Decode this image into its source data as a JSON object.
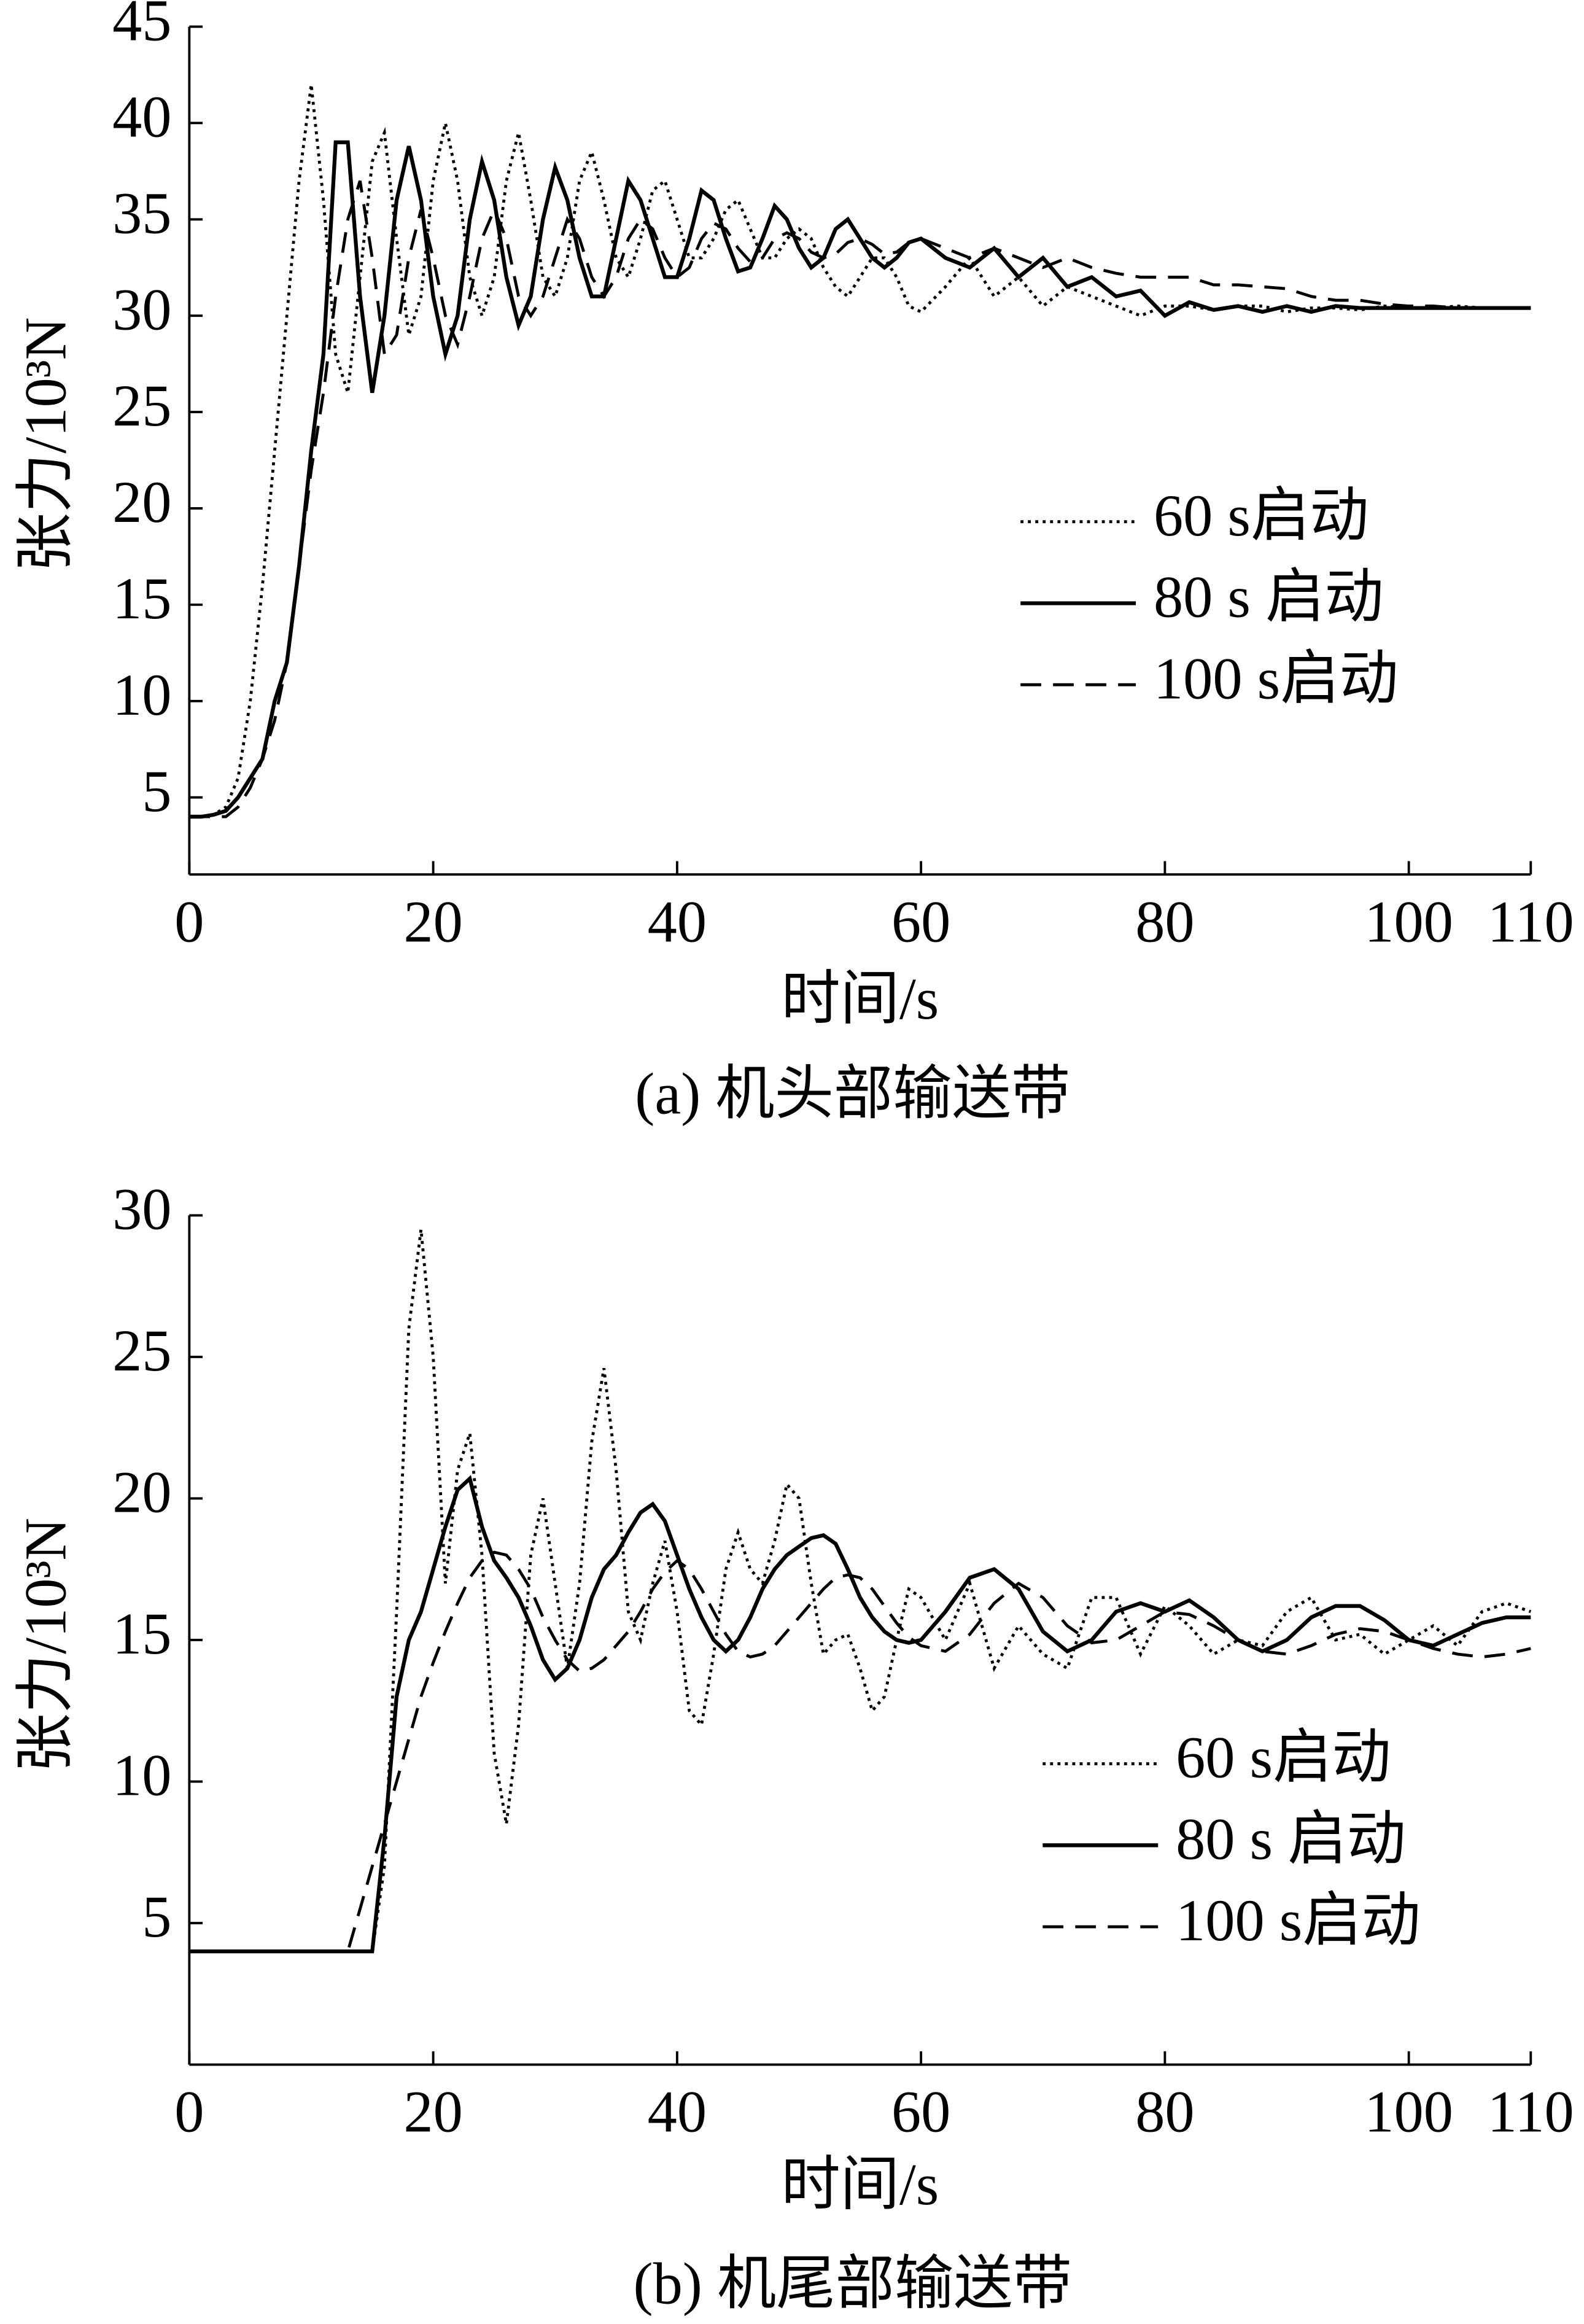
{
  "chart_data": [
    {
      "type": "line",
      "caption": "(a)  机头部输送带",
      "xlabel": "时间/s",
      "ylabel": "张力/10³N",
      "xlim": [
        0,
        110
      ],
      "xticks": [
        0,
        20,
        40,
        60,
        80,
        100,
        110
      ],
      "ylim": [
        1,
        45
      ],
      "yticks": [
        5,
        10,
        15,
        20,
        25,
        30,
        35,
        40,
        45
      ],
      "x": [
        0,
        1,
        2,
        3,
        4,
        5,
        6,
        7,
        8,
        9,
        10,
        11,
        12,
        13,
        14,
        15,
        16,
        17,
        18,
        19,
        20,
        21,
        22,
        23,
        24,
        25,
        26,
        27,
        28,
        29,
        30,
        31,
        32,
        33,
        34,
        35,
        36,
        37,
        38,
        39,
        40,
        41,
        42,
        43,
        44,
        45,
        46,
        47,
        48,
        49,
        50,
        51,
        52,
        53,
        54,
        55,
        56,
        57,
        58,
        59,
        60,
        62,
        64,
        66,
        68,
        70,
        72,
        74,
        76,
        78,
        80,
        82,
        84,
        86,
        88,
        90,
        92,
        94,
        96,
        98,
        100,
        102,
        104,
        106,
        108,
        110
      ],
      "series": [
        {
          "name": "60 s启动",
          "color": "#000000",
          "linestyle": "dotted",
          "values": [
            4,
            4,
            4.1,
            4.5,
            6,
            10,
            16,
            23,
            30,
            37,
            42,
            36,
            28,
            26,
            32,
            38,
            39.5,
            34,
            29,
            31,
            37,
            40,
            37,
            32,
            30,
            32,
            37,
            39.5,
            36,
            32,
            31,
            33,
            37,
            38.5,
            36,
            33,
            32,
            34,
            36.5,
            37,
            35,
            33,
            33,
            34,
            35.5,
            36,
            34.5,
            33,
            33,
            34,
            34.5,
            34,
            32.5,
            31.5,
            31,
            32,
            33,
            33,
            32,
            30.5,
            30.2,
            31.5,
            33,
            31,
            32,
            30.5,
            31.5,
            31,
            30.5,
            30,
            30.5,
            30.5,
            30.3,
            30.5,
            30.5,
            30.2,
            30.4,
            30.4,
            30.3,
            30.5,
            30.4,
            30.4,
            30.5,
            30.4,
            30.4,
            30.4
          ]
        },
        {
          "name": "80 s 启动",
          "color": "#000000",
          "linestyle": "solid",
          "values": [
            4,
            4,
            4.1,
            4.3,
            5,
            6,
            7,
            10,
            12,
            17,
            23,
            28,
            39,
            39,
            31,
            26,
            30,
            36,
            38.8,
            36,
            31,
            28,
            30,
            35,
            38,
            36,
            32,
            29.5,
            31,
            35,
            37.7,
            36,
            33,
            31,
            31,
            34,
            37,
            36,
            34,
            32,
            32,
            34,
            36.5,
            36,
            34,
            32.3,
            32.5,
            34,
            35.7,
            35,
            33.5,
            32.5,
            33,
            34.5,
            35,
            34,
            33,
            32.5,
            33,
            33.8,
            34,
            33,
            32.5,
            33.5,
            32,
            33,
            31.5,
            32,
            31,
            31.3,
            30,
            30.7,
            30.3,
            30.5,
            30.2,
            30.5,
            30.2,
            30.5,
            30.4,
            30.4,
            30.4,
            30.4,
            30.4,
            30.4,
            30.4,
            30.4
          ]
        },
        {
          "name": "100 s启动",
          "color": "#000000",
          "linestyle": "dashed",
          "values": [
            4,
            4,
            4,
            4,
            4.5,
            5.5,
            7,
            9,
            12,
            17,
            22,
            26,
            31,
            35,
            37,
            33,
            28,
            29,
            33,
            35.5,
            33,
            30,
            28.5,
            31,
            34,
            35.5,
            34,
            31,
            30,
            31,
            33,
            35,
            34,
            32,
            31,
            32,
            34,
            35,
            34.5,
            33,
            32,
            32.5,
            34,
            34.8,
            34.5,
            33.5,
            32.8,
            33,
            34,
            34.3,
            34,
            33.3,
            33,
            33.2,
            33.8,
            34,
            33.7,
            33.2,
            33.3,
            33.8,
            34,
            33.5,
            33,
            33.5,
            33,
            32.5,
            33,
            32.5,
            32.2,
            32,
            32,
            32,
            31.6,
            31.6,
            31.5,
            31.4,
            31,
            30.8,
            30.8,
            30.6,
            30.5,
            30.5,
            30.4,
            30.4,
            30.4,
            30.4
          ]
        }
      ]
    },
    {
      "type": "line",
      "caption": "(b)  机尾部输送带",
      "xlabel": "时间/s",
      "ylabel": "张力/10³N",
      "xlim": [
        0,
        110
      ],
      "xticks": [
        0,
        20,
        40,
        60,
        80,
        100,
        110
      ],
      "ylim": [
        0,
        30
      ],
      "yticks": [
        5,
        10,
        15,
        20,
        25,
        30
      ],
      "x": [
        0,
        1,
        2,
        3,
        4,
        5,
        6,
        7,
        8,
        9,
        10,
        11,
        12,
        13,
        14,
        15,
        16,
        17,
        18,
        19,
        20,
        21,
        22,
        23,
        24,
        25,
        26,
        27,
        28,
        29,
        30,
        31,
        32,
        33,
        34,
        35,
        36,
        37,
        38,
        39,
        40,
        41,
        42,
        43,
        44,
        45,
        46,
        47,
        48,
        49,
        50,
        51,
        52,
        53,
        54,
        55,
        56,
        57,
        58,
        59,
        60,
        62,
        64,
        66,
        68,
        70,
        72,
        74,
        76,
        78,
        80,
        82,
        84,
        86,
        88,
        90,
        92,
        94,
        96,
        98,
        100,
        102,
        104,
        106,
        108,
        110
      ],
      "series": [
        {
          "name": "60 s启动",
          "color": "#000000",
          "linestyle": "dotted",
          "values": [
            4,
            4,
            4,
            4,
            4,
            4,
            4,
            4,
            4,
            4,
            4,
            4,
            4,
            4,
            4,
            4,
            7,
            16,
            26,
            29.5,
            25,
            17,
            21,
            22.3,
            18,
            11,
            8.5,
            12,
            18,
            20,
            17,
            14,
            17,
            22,
            24.6,
            21,
            16,
            15,
            17,
            18.5,
            16,
            12.5,
            12,
            14.5,
            17.5,
            18.8,
            17.5,
            17,
            18.5,
            20.5,
            20,
            17,
            14.5,
            15,
            15.2,
            14,
            12.5,
            13,
            15,
            16.8,
            16.5,
            15,
            17,
            14,
            15.5,
            14.5,
            14,
            16.5,
            16.5,
            14.5,
            16.2,
            15.5,
            14.5,
            15,
            14.8,
            16,
            16.5,
            15,
            15.2,
            14.5,
            15,
            15.5,
            14.8,
            16,
            16.3,
            16
          ]
        },
        {
          "name": "80 s 启动",
          "color": "#000000",
          "linestyle": "solid",
          "values": [
            4,
            4,
            4,
            4,
            4,
            4,
            4,
            4,
            4,
            4,
            4,
            4,
            4,
            4,
            4,
            4,
            8,
            13,
            15,
            16,
            17.5,
            19,
            20.3,
            20.7,
            19,
            17.8,
            17.2,
            16.5,
            15.5,
            14.3,
            13.6,
            14,
            15,
            16.5,
            17.5,
            18,
            18.8,
            19.5,
            19.8,
            19.2,
            18,
            16.8,
            15.8,
            15,
            14.6,
            15,
            15.8,
            16.8,
            17.5,
            18,
            18.3,
            18.6,
            18.7,
            18.4,
            17.5,
            16.5,
            15.8,
            15.3,
            15,
            14.9,
            15,
            16,
            17.2,
            17.5,
            16.8,
            15.3,
            14.6,
            15,
            16,
            16.3,
            16,
            16.4,
            15.8,
            15,
            14.6,
            15,
            15.8,
            16.2,
            16.2,
            15.7,
            15,
            14.8,
            15.2,
            15.6,
            15.8,
            15.8
          ]
        },
        {
          "name": "100 s启动",
          "color": "#000000",
          "linestyle": "dashed",
          "values": [
            4,
            4,
            4,
            4,
            4,
            4,
            4,
            4,
            4,
            4,
            4,
            4,
            4,
            4,
            5.5,
            7,
            8.5,
            10,
            11.5,
            13,
            14.2,
            15.3,
            16.3,
            17.2,
            17.8,
            18.1,
            18,
            17.5,
            16.8,
            15.8,
            15,
            14.3,
            13.9,
            14,
            14.3,
            14.8,
            15.3,
            16,
            16.8,
            17.4,
            17.8,
            17.5,
            16.8,
            16,
            15.2,
            14.6,
            14.4,
            14.5,
            14.8,
            15.3,
            15.8,
            16.3,
            16.8,
            17.2,
            17.3,
            17.2,
            16.8,
            16.2,
            15.6,
            15.1,
            14.8,
            14.6,
            15.2,
            16.3,
            17,
            16.5,
            15.5,
            14.9,
            15,
            15.5,
            16,
            15.9,
            15.5,
            15,
            14.6,
            14.5,
            14.8,
            15.2,
            15.4,
            15.3,
            15,
            14.7,
            14.5,
            14.4,
            14.5,
            14.7
          ]
        }
      ]
    }
  ]
}
